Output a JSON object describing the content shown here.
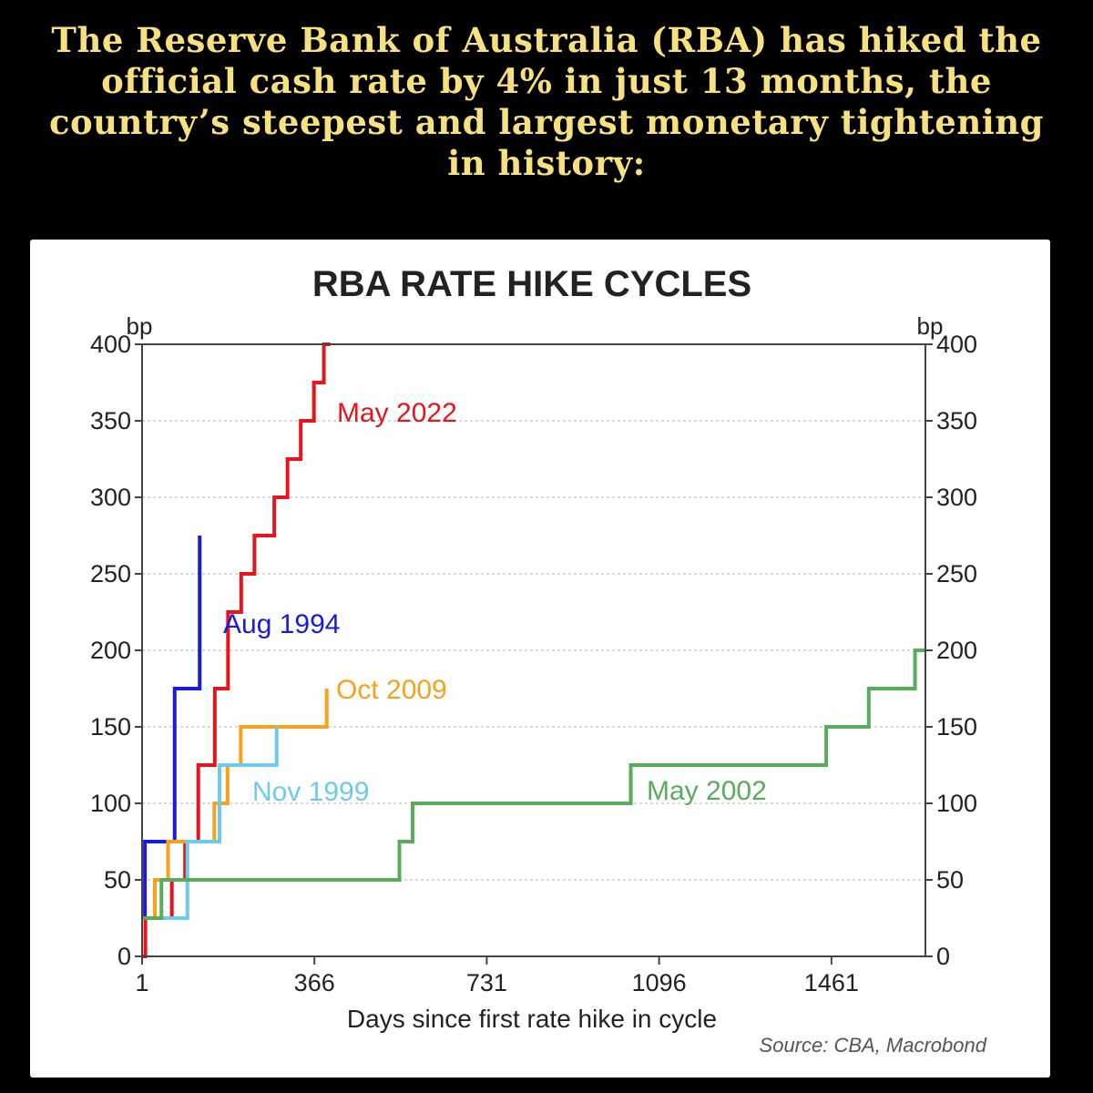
{
  "headline": "The Reserve Bank of Australia (RBA) has hiked the official cash rate by 4% in just 13 months, the country’s steepest and largest monetary tightening in history:",
  "chart_data": {
    "type": "line",
    "title": "RBA RATE HIKE CYCLES",
    "ylabel_left": "bp",
    "ylabel_right": "bp",
    "xlabel": "Days since first rate hike in cycle",
    "source": "Source: CBA, Macrobond",
    "xlim": [
      1,
      1660
    ],
    "ylim": [
      0,
      400
    ],
    "x_ticks": [
      1,
      366,
      731,
      1096,
      1461
    ],
    "y_ticks": [
      0,
      50,
      100,
      150,
      200,
      250,
      300,
      350,
      400
    ],
    "grid": true,
    "step": true,
    "series": [
      {
        "name": "May 2022",
        "color": "#e8141c",
        "x": [
          1,
          8,
          36,
          64,
          92,
          120,
          155,
          183,
          211,
          239,
          281,
          309,
          337,
          365,
          386,
          400
        ],
        "y": [
          0,
          25,
          25,
          50,
          75,
          125,
          175,
          225,
          250,
          275,
          300,
          325,
          350,
          375,
          400,
          400
        ]
      },
      {
        "name": "Aug 1994",
        "color": "#1a1adc",
        "x": [
          1,
          7,
          70,
          123,
          123
        ],
        "y": [
          25,
          75,
          175,
          275,
          275
        ]
      },
      {
        "name": "Oct 2009",
        "color": "#f7a21b",
        "x": [
          1,
          28,
          56,
          154,
          182,
          210,
          392,
          392
        ],
        "y": [
          25,
          50,
          75,
          100,
          125,
          150,
          175,
          175
        ]
      },
      {
        "name": "Nov 1999",
        "color": "#6ccbe8",
        "x": [
          1,
          97,
          165,
          212,
          286,
          286
        ],
        "y": [
          25,
          75,
          125,
          125,
          150,
          150
        ]
      },
      {
        "name": "May 2002",
        "color": "#58ad5a",
        "x": [
          1,
          42,
          546,
          574,
          1036,
          1450,
          1540,
          1638,
          1660
        ],
        "y": [
          25,
          50,
          75,
          100,
          125,
          150,
          175,
          200,
          200
        ]
      }
    ],
    "annotations": [
      {
        "text": "May 2022",
        "series": 0
      },
      {
        "text": "Aug 1994",
        "series": 1
      },
      {
        "text": "Oct 2009",
        "series": 2
      },
      {
        "text": "Nov 1999",
        "series": 3
      },
      {
        "text": "May 2002",
        "series": 4
      }
    ]
  }
}
